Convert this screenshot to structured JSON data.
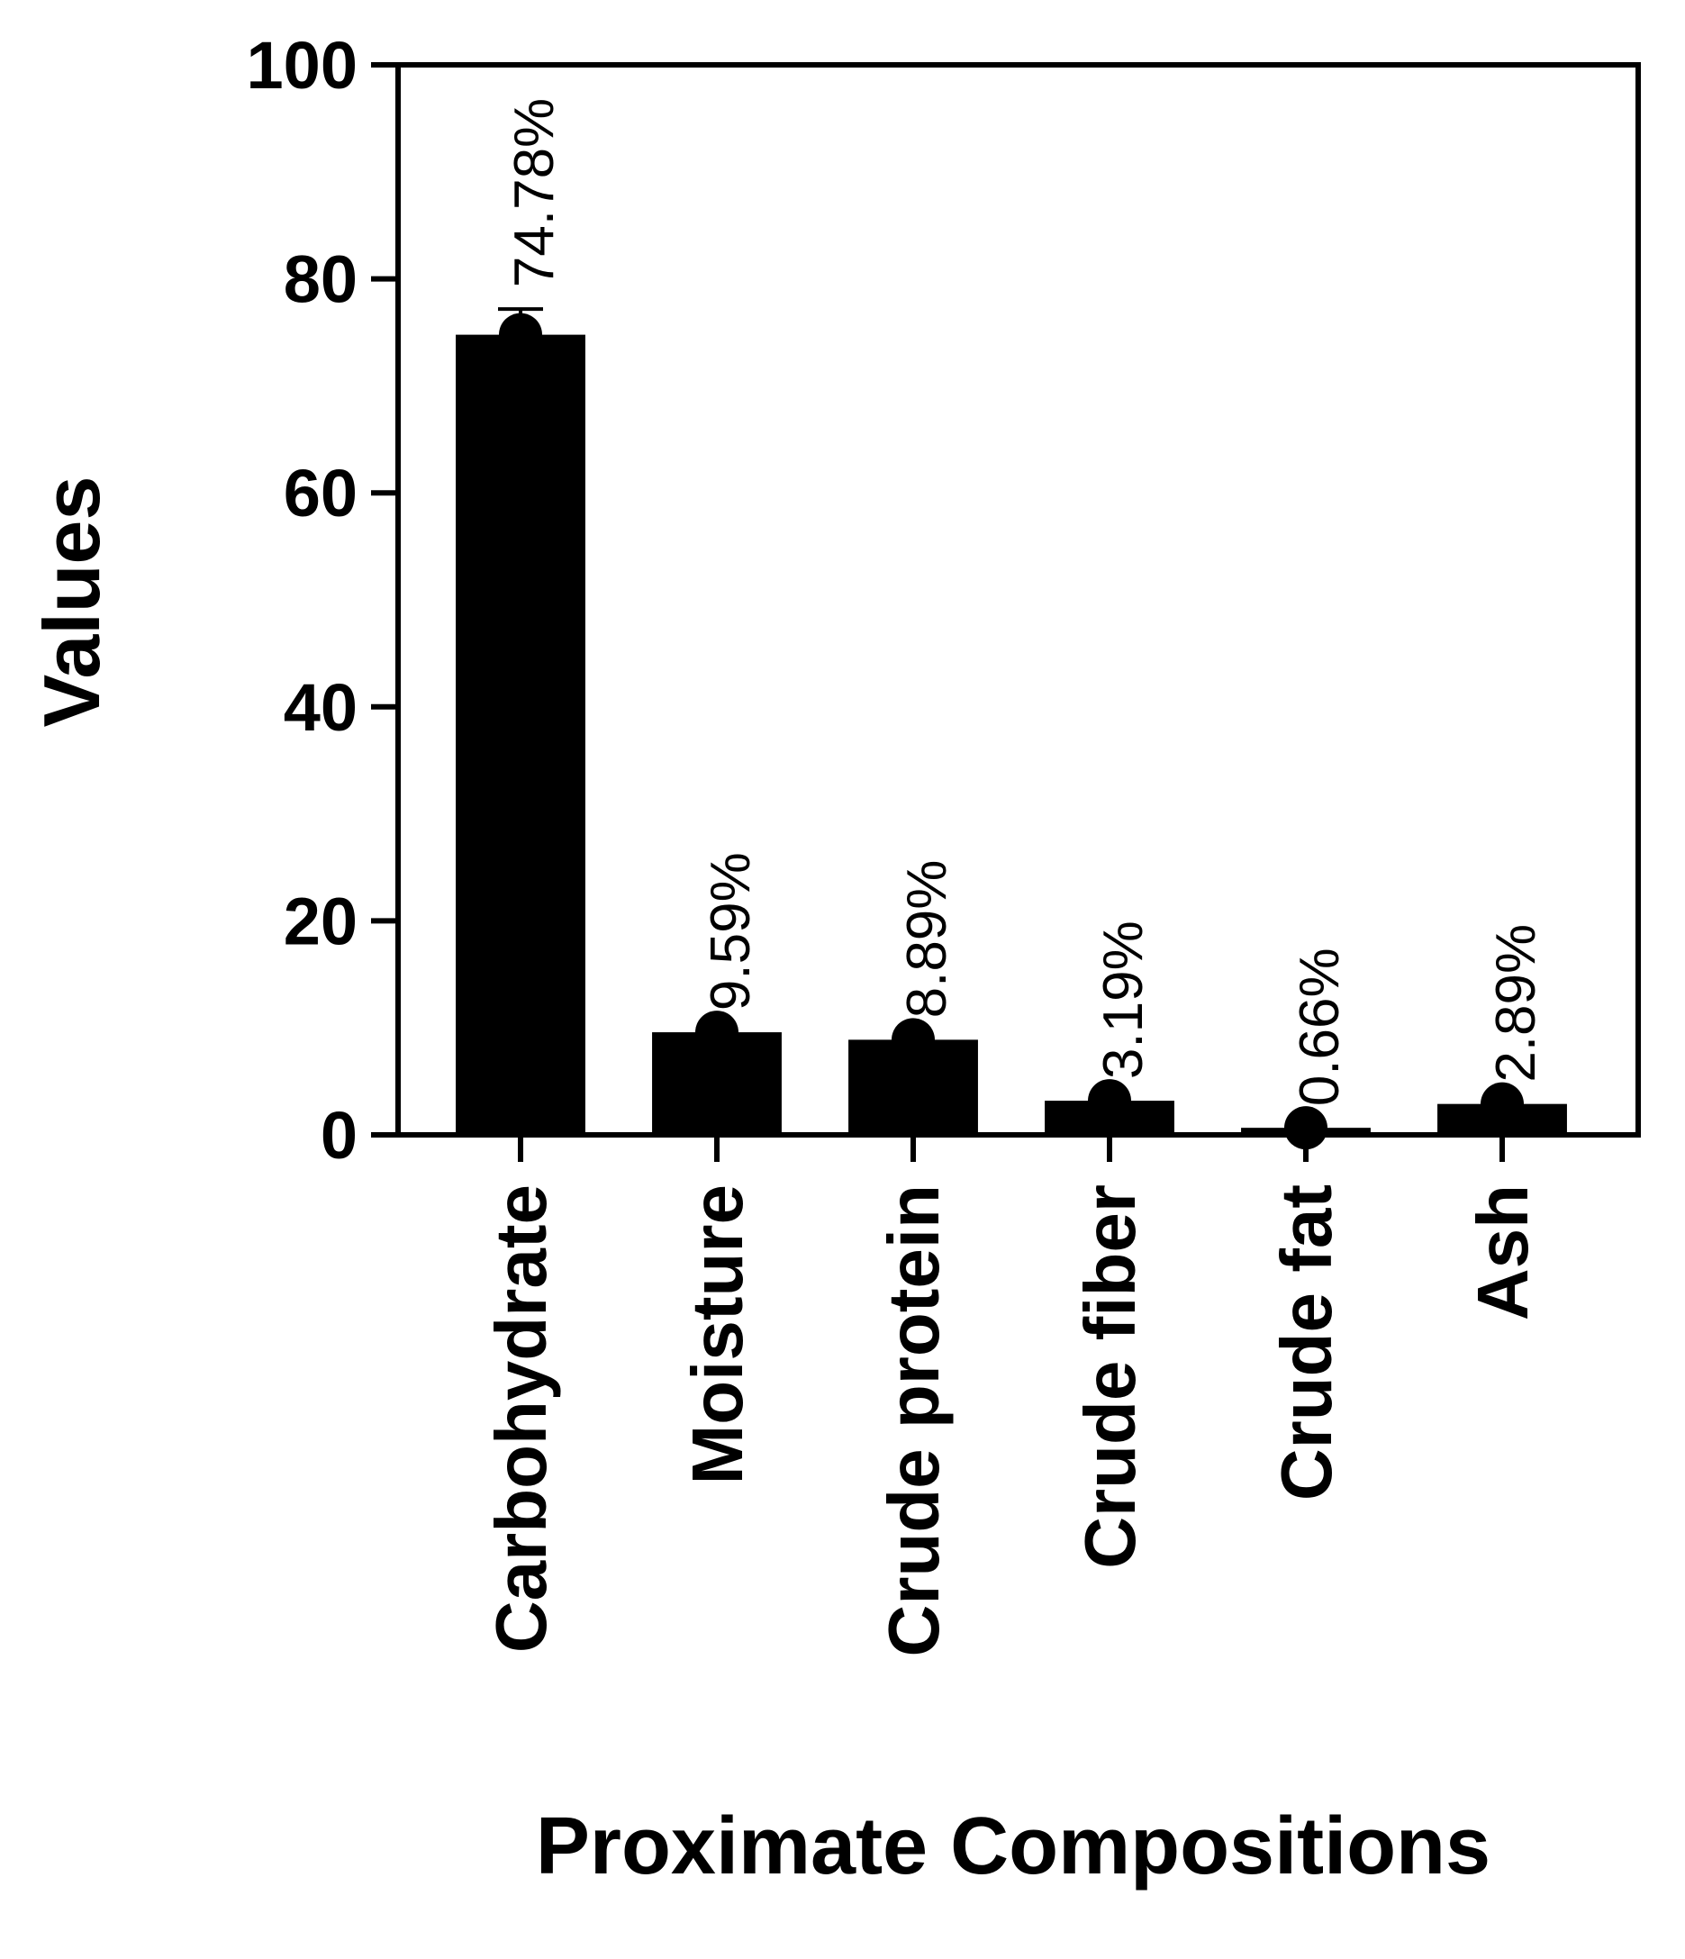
{
  "chart_data": {
    "type": "bar",
    "x_label": "Proximate Compositions",
    "y_label": "Values",
    "categories": [
      "Carbohydrate",
      "Moisture",
      "Crude protein",
      "Crude fiber",
      "Crude fat",
      "Ash"
    ],
    "values": [
      74.78,
      9.59,
      8.89,
      3.19,
      0.66,
      2.89
    ],
    "value_labels": [
      "74.78%",
      "9.59%",
      "8.89%",
      "3.19%",
      "0.66%",
      "2.89%"
    ],
    "errors": [
      2.4,
      null,
      null,
      null,
      null,
      null
    ],
    "color": "#000000",
    "label_color": "#ff0000",
    "ylim": [
      0,
      100
    ],
    "yticks": [
      0,
      20,
      40,
      60,
      80,
      100
    ],
    "grid": false
  }
}
